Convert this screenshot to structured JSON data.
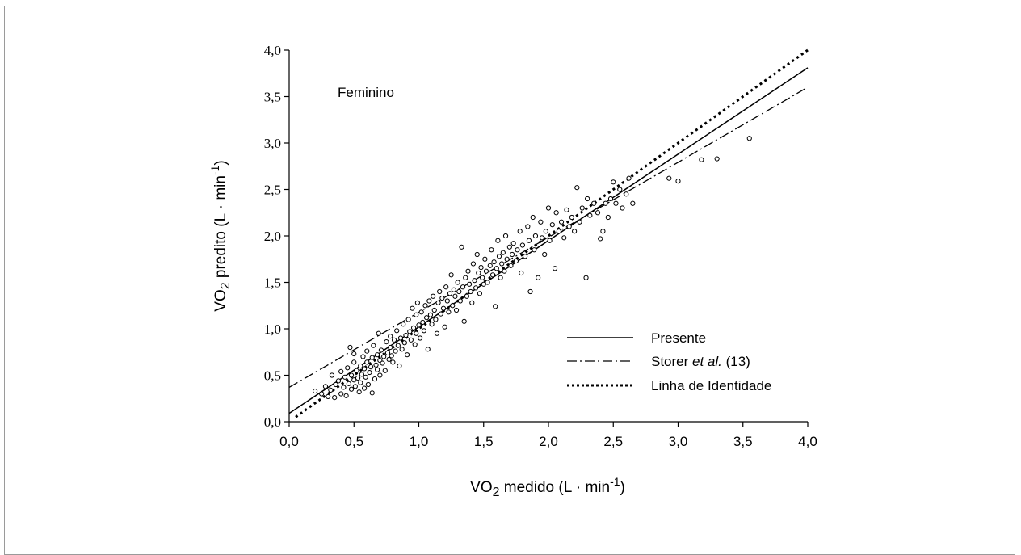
{
  "chart_data": {
    "type": "scatter",
    "annotation": "Feminino",
    "xlabel": {
      "main": "VO",
      "sub": "2",
      "rest": " medido (L · min",
      "sup": "-1",
      "end": ")"
    },
    "ylabel": {
      "main": "VO",
      "sub": "2",
      "rest": " predito (L · min",
      "sup": "-1",
      "end": ")"
    },
    "xlim": [
      0,
      4
    ],
    "ylim": [
      0,
      4
    ],
    "xticks": [
      "0,0",
      "0,5",
      "1,0",
      "1,5",
      "2,0",
      "2,5",
      "3,0",
      "3,5",
      "4,0"
    ],
    "yticks": [
      "0,0",
      "0,5",
      "1,0",
      "1,5",
      "2,0",
      "2,5",
      "3,0",
      "3,5",
      "4,0"
    ],
    "legend_position": "bottom-right",
    "lines": [
      {
        "name": "Presente",
        "style": "solid",
        "x": [
          0,
          4.0
        ],
        "y": [
          0.09,
          3.81
        ]
      },
      {
        "name_prefix": "Storer ",
        "name_italic": "et al.",
        "name_suffix": " (13)",
        "style": "dashdot",
        "x": [
          0,
          4.0
        ],
        "y": [
          0.37,
          3.6
        ]
      },
      {
        "name": "Linha de Identidade",
        "style": "dotted",
        "x": [
          0.05,
          4.0
        ],
        "y": [
          0.05,
          4.0
        ]
      }
    ],
    "points": [
      [
        0.2,
        0.33
      ],
      [
        0.25,
        0.3
      ],
      [
        0.28,
        0.38
      ],
      [
        0.3,
        0.27
      ],
      [
        0.32,
        0.34
      ],
      [
        0.33,
        0.5
      ],
      [
        0.35,
        0.26
      ],
      [
        0.36,
        0.4
      ],
      [
        0.38,
        0.44
      ],
      [
        0.4,
        0.3
      ],
      [
        0.4,
        0.54
      ],
      [
        0.42,
        0.37
      ],
      [
        0.43,
        0.48
      ],
      [
        0.44,
        0.28
      ],
      [
        0.45,
        0.58
      ],
      [
        0.46,
        0.41
      ],
      [
        0.47,
        0.8
      ],
      [
        0.48,
        0.5
      ],
      [
        0.48,
        0.35
      ],
      [
        0.5,
        0.45
      ],
      [
        0.5,
        0.64
      ],
      [
        0.5,
        0.73
      ],
      [
        0.51,
        0.38
      ],
      [
        0.52,
        0.55
      ],
      [
        0.53,
        0.47
      ],
      [
        0.54,
        0.32
      ],
      [
        0.55,
        0.6
      ],
      [
        0.55,
        0.42
      ],
      [
        0.56,
        0.51
      ],
      [
        0.57,
        0.7
      ],
      [
        0.58,
        0.36
      ],
      [
        0.58,
        0.57
      ],
      [
        0.59,
        0.48
      ],
      [
        0.6,
        0.64
      ],
      [
        0.6,
        0.76
      ],
      [
        0.61,
        0.4
      ],
      [
        0.62,
        0.53
      ],
      [
        0.63,
        0.59
      ],
      [
        0.64,
        0.31
      ],
      [
        0.64,
        0.69
      ],
      [
        0.65,
        0.82
      ],
      [
        0.66,
        0.46
      ],
      [
        0.67,
        0.61
      ],
      [
        0.68,
        0.72
      ],
      [
        0.68,
        0.56
      ],
      [
        0.69,
        0.95
      ],
      [
        0.7,
        0.66
      ],
      [
        0.7,
        0.5
      ],
      [
        0.71,
        0.77
      ],
      [
        0.72,
        0.63
      ],
      [
        0.73,
        0.7
      ],
      [
        0.74,
        0.55
      ],
      [
        0.75,
        0.86
      ],
      [
        0.76,
        0.74
      ],
      [
        0.77,
        0.67
      ],
      [
        0.78,
        0.92
      ],
      [
        0.78,
        0.8
      ],
      [
        0.79,
        0.71
      ],
      [
        0.8,
        0.64
      ],
      [
        0.81,
        0.88
      ],
      [
        0.82,
        0.76
      ],
      [
        0.83,
        0.98
      ],
      [
        0.84,
        0.82
      ],
      [
        0.85,
        0.6
      ],
      [
        0.86,
        0.9
      ],
      [
        0.87,
        0.78
      ],
      [
        0.88,
        1.05
      ],
      [
        0.89,
        0.85
      ],
      [
        0.9,
        0.93
      ],
      [
        0.91,
        0.72
      ],
      [
        0.92,
        1.1
      ],
      [
        0.93,
        0.97
      ],
      [
        0.94,
        0.88
      ],
      [
        0.95,
        1.22
      ],
      [
        0.96,
        1.01
      ],
      [
        0.97,
        0.83
      ],
      [
        0.98,
        1.15
      ],
      [
        0.98,
        0.95
      ],
      [
        0.99,
        1.28
      ],
      [
        1.0,
        1.04
      ],
      [
        1.01,
        0.9
      ],
      [
        1.02,
        1.18
      ],
      [
        1.03,
        1.07
      ],
      [
        1.04,
        0.98
      ],
      [
        1.05,
        1.25
      ],
      [
        1.06,
        1.12
      ],
      [
        1.07,
        0.78
      ],
      [
        1.08,
        1.3
      ],
      [
        1.09,
        1.15
      ],
      [
        1.1,
        1.05
      ],
      [
        1.11,
        1.35
      ],
      [
        1.12,
        1.2
      ],
      [
        1.13,
        1.1
      ],
      [
        1.14,
        0.95
      ],
      [
        1.15,
        1.28
      ],
      [
        1.16,
        1.4
      ],
      [
        1.17,
        1.16
      ],
      [
        1.18,
        1.33
      ],
      [
        1.19,
        1.22
      ],
      [
        1.2,
        1.02
      ],
      [
        1.21,
        1.45
      ],
      [
        1.22,
        1.3
      ],
      [
        1.23,
        1.18
      ],
      [
        1.24,
        1.38
      ],
      [
        1.25,
        1.58
      ],
      [
        1.26,
        1.25
      ],
      [
        1.27,
        1.42
      ],
      [
        1.28,
        1.35
      ],
      [
        1.29,
        1.2
      ],
      [
        1.3,
        1.5
      ],
      [
        1.31,
        1.4
      ],
      [
        1.32,
        1.3
      ],
      [
        1.33,
        1.88
      ],
      [
        1.34,
        1.45
      ],
      [
        1.35,
        1.08
      ],
      [
        1.36,
        1.55
      ],
      [
        1.37,
        1.35
      ],
      [
        1.38,
        1.62
      ],
      [
        1.39,
        1.48
      ],
      [
        1.4,
        1.4
      ],
      [
        1.41,
        1.28
      ],
      [
        1.42,
        1.7
      ],
      [
        1.43,
        1.52
      ],
      [
        1.44,
        1.44
      ],
      [
        1.45,
        1.8
      ],
      [
        1.46,
        1.6
      ],
      [
        1.47,
        1.38
      ],
      [
        1.48,
        1.66
      ],
      [
        1.49,
        1.55
      ],
      [
        1.5,
        1.48
      ],
      [
        1.51,
        1.75
      ],
      [
        1.52,
        1.62
      ],
      [
        1.53,
        1.5
      ],
      [
        1.55,
        1.68
      ],
      [
        1.56,
        1.85
      ],
      [
        1.57,
        1.58
      ],
      [
        1.58,
        1.72
      ],
      [
        1.59,
        1.24
      ],
      [
        1.6,
        1.65
      ],
      [
        1.61,
        1.95
      ],
      [
        1.62,
        1.78
      ],
      [
        1.63,
        1.55
      ],
      [
        1.64,
        1.7
      ],
      [
        1.65,
        1.82
      ],
      [
        1.66,
        1.62
      ],
      [
        1.67,
        2.0
      ],
      [
        1.68,
        1.75
      ],
      [
        1.7,
        1.88
      ],
      [
        1.71,
        1.68
      ],
      [
        1.72,
        1.8
      ],
      [
        1.73,
        1.92
      ],
      [
        1.75,
        1.73
      ],
      [
        1.76,
        1.85
      ],
      [
        1.78,
        2.05
      ],
      [
        1.79,
        1.6
      ],
      [
        1.8,
        1.9
      ],
      [
        1.82,
        1.78
      ],
      [
        1.84,
        2.1
      ],
      [
        1.85,
        1.95
      ],
      [
        1.86,
        1.4
      ],
      [
        1.88,
        2.2
      ],
      [
        1.89,
        1.85
      ],
      [
        1.9,
        2.0
      ],
      [
        1.92,
        1.55
      ],
      [
        1.94,
        2.15
      ],
      [
        1.95,
        1.98
      ],
      [
        1.97,
        1.8
      ],
      [
        1.98,
        2.05
      ],
      [
        2.0,
        2.3
      ],
      [
        2.01,
        1.95
      ],
      [
        2.03,
        2.12
      ],
      [
        2.05,
        1.65
      ],
      [
        2.06,
        2.25
      ],
      [
        2.08,
        2.05
      ],
      [
        2.1,
        2.15
      ],
      [
        2.12,
        1.98
      ],
      [
        2.14,
        2.28
      ],
      [
        2.16,
        2.1
      ],
      [
        2.18,
        2.2
      ],
      [
        2.2,
        2.05
      ],
      [
        2.22,
        2.52
      ],
      [
        2.24,
        2.15
      ],
      [
        2.26,
        2.3
      ],
      [
        2.29,
        1.55
      ],
      [
        2.3,
        2.4
      ],
      [
        2.32,
        2.22
      ],
      [
        2.35,
        2.35
      ],
      [
        2.38,
        2.25
      ],
      [
        2.4,
        1.97
      ],
      [
        2.42,
        2.05
      ],
      [
        2.44,
        2.35
      ],
      [
        2.46,
        2.2
      ],
      [
        2.48,
        2.4
      ],
      [
        2.5,
        2.58
      ],
      [
        2.52,
        2.35
      ],
      [
        2.55,
        2.5
      ],
      [
        2.57,
        2.3
      ],
      [
        2.6,
        2.45
      ],
      [
        2.62,
        2.62
      ],
      [
        2.65,
        2.35
      ],
      [
        2.93,
        2.62
      ],
      [
        3.0,
        2.59
      ],
      [
        3.18,
        2.82
      ],
      [
        3.3,
        2.83
      ],
      [
        3.55,
        3.05
      ]
    ]
  }
}
